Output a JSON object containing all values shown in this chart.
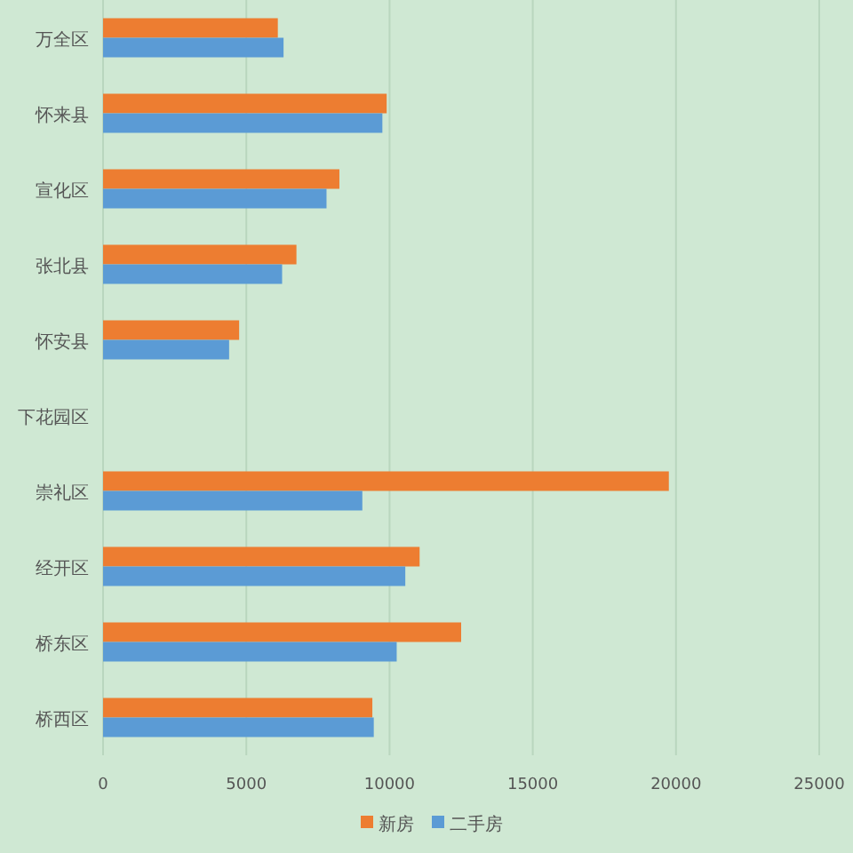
{
  "chart_data": {
    "type": "bar",
    "orientation": "horizontal",
    "categories": [
      "万全区",
      "怀来县",
      "宣化区",
      "张北县",
      "怀安县",
      "下花园区",
      "崇礼区",
      "经开区",
      "桥东区",
      "桥西区"
    ],
    "series": [
      {
        "name": "新房",
        "color": "#ed7d31",
        "values": [
          6100,
          9900,
          8250,
          6750,
          4750,
          null,
          19750,
          11050,
          12500,
          9400
        ]
      },
      {
        "name": "二手房",
        "color": "#5b9bd5",
        "values": [
          6300,
          9750,
          7800,
          6250,
          4400,
          null,
          9050,
          10550,
          10250,
          9450
        ]
      }
    ],
    "xlim": [
      0,
      25000
    ],
    "xticks": [
      0,
      5000,
      10000,
      15000,
      20000,
      25000
    ],
    "grid": "x",
    "legend": "bottom"
  }
}
